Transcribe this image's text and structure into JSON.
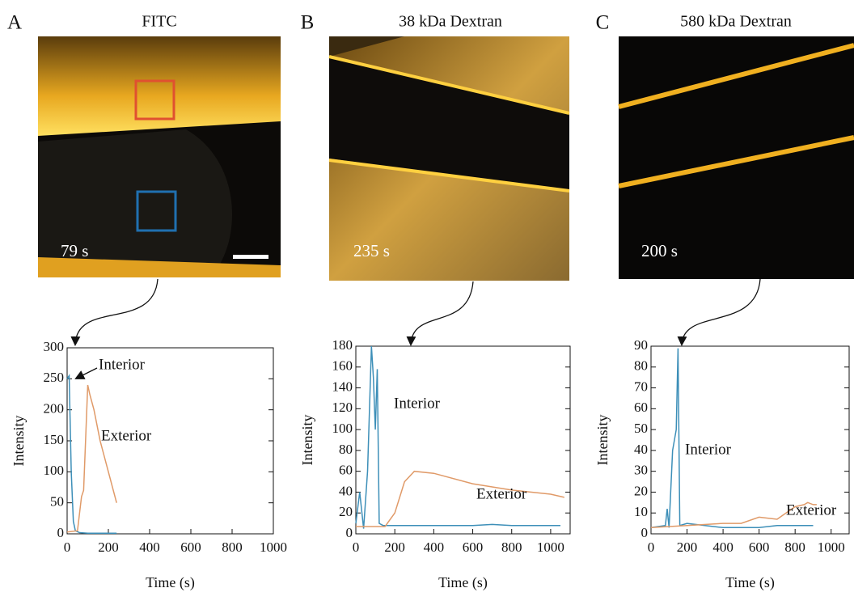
{
  "chart_data": [
    {
      "type": "line",
      "panel": "A",
      "title": "FITC",
      "image_label": "79 s",
      "xlabel": "Time (s)",
      "ylabel": "Intensity",
      "xlim": [
        0,
        1000
      ],
      "ylim": [
        0,
        300
      ],
      "xticks": [
        0,
        200,
        400,
        600,
        800,
        1000
      ],
      "yticks": [
        0,
        50,
        100,
        150,
        200,
        250,
        300
      ],
      "series": [
        {
          "name": "Interior",
          "color": "#3d8fb8",
          "x": [
            0,
            10,
            20,
            30,
            40,
            60,
            100,
            200,
            240
          ],
          "values": [
            250,
            255,
            100,
            20,
            5,
            2,
            1,
            1,
            1
          ]
        },
        {
          "name": "Exterior",
          "color": "#e09a68",
          "x": [
            0,
            50,
            70,
            80,
            100,
            110,
            130,
            160,
            200,
            240
          ],
          "values": [
            3,
            5,
            60,
            70,
            240,
            225,
            200,
            150,
            100,
            50
          ]
        }
      ]
    },
    {
      "type": "line",
      "panel": "B",
      "title": "38 kDa Dextran",
      "image_label": "235 s",
      "xlabel": "Time (s)",
      "ylabel": "Intensity",
      "xlim": [
        0,
        1100
      ],
      "ylim": [
        0,
        180
      ],
      "xticks": [
        0,
        200,
        400,
        600,
        800,
        1000
      ],
      "yticks": [
        0,
        20,
        40,
        60,
        80,
        100,
        120,
        140,
        160,
        180
      ],
      "series": [
        {
          "name": "Interior",
          "color": "#3d8fb8",
          "x": [
            0,
            20,
            40,
            60,
            80,
            90,
            100,
            110,
            120,
            140,
            200,
            600,
            700,
            800,
            1050
          ],
          "values": [
            10,
            40,
            5,
            60,
            180,
            150,
            100,
            158,
            10,
            8,
            8,
            8,
            9,
            8,
            8
          ]
        },
        {
          "name": "Exterior",
          "color": "#e09a68",
          "x": [
            0,
            150,
            200,
            250,
            300,
            400,
            600,
            800,
            1000,
            1070
          ],
          "values": [
            7,
            7,
            20,
            50,
            60,
            58,
            48,
            42,
            38,
            35
          ]
        }
      ]
    },
    {
      "type": "line",
      "panel": "C",
      "title": "580 kDa Dextran",
      "image_label": "200 s",
      "xlabel": "Time (s)",
      "ylabel": "Intensity",
      "xlim": [
        0,
        1100
      ],
      "ylim": [
        0,
        90
      ],
      "xticks": [
        0,
        200,
        400,
        600,
        800,
        1000
      ],
      "yticks": [
        0,
        10,
        20,
        30,
        40,
        50,
        60,
        70,
        80,
        90
      ],
      "series": [
        {
          "name": "Interior",
          "color": "#3d8fb8",
          "x": [
            0,
            80,
            90,
            100,
            120,
            140,
            150,
            160,
            200,
            300,
            400,
            600,
            700,
            900
          ],
          "values": [
            3,
            4,
            12,
            3,
            40,
            50,
            89,
            4,
            5,
            4,
            3,
            3,
            4,
            4
          ]
        },
        {
          "name": "Exterior",
          "color": "#e09a68",
          "x": [
            0,
            200,
            400,
            500,
            600,
            700,
            750,
            800,
            850,
            870,
            900,
            920
          ],
          "values": [
            3,
            4,
            5,
            5,
            8,
            7,
            10,
            13,
            14,
            15,
            14,
            14
          ]
        }
      ]
    }
  ]
}
